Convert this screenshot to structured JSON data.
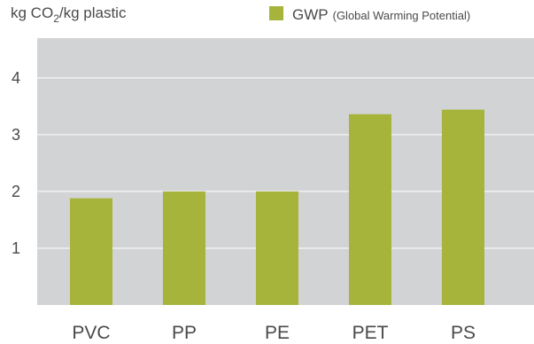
{
  "chart_data": {
    "type": "bar",
    "ylabel": {
      "prefix": "kg CO",
      "subscript": "2",
      "suffix": "/kg plastic"
    },
    "legend": {
      "position": "top-right",
      "entries": [
        {
          "name": "GWP",
          "detail": "(Global Warming Potential)",
          "color": "#a7b43c"
        }
      ]
    },
    "categories": [
      "PVC",
      "PP",
      "PE",
      "PET",
      "PS"
    ],
    "series": [
      {
        "name": "GWP",
        "values": [
          1.88,
          2.0,
          2.0,
          3.36,
          3.44
        ]
      }
    ],
    "ylim": [
      0,
      4.7
    ],
    "yticks": [
      "1",
      "2",
      "3",
      "4"
    ],
    "grid": true,
    "colors": {
      "background": "#d2d3d4",
      "grid": "#ffffff",
      "bar": "#a7b43c",
      "text": "#4a4a4a"
    }
  }
}
